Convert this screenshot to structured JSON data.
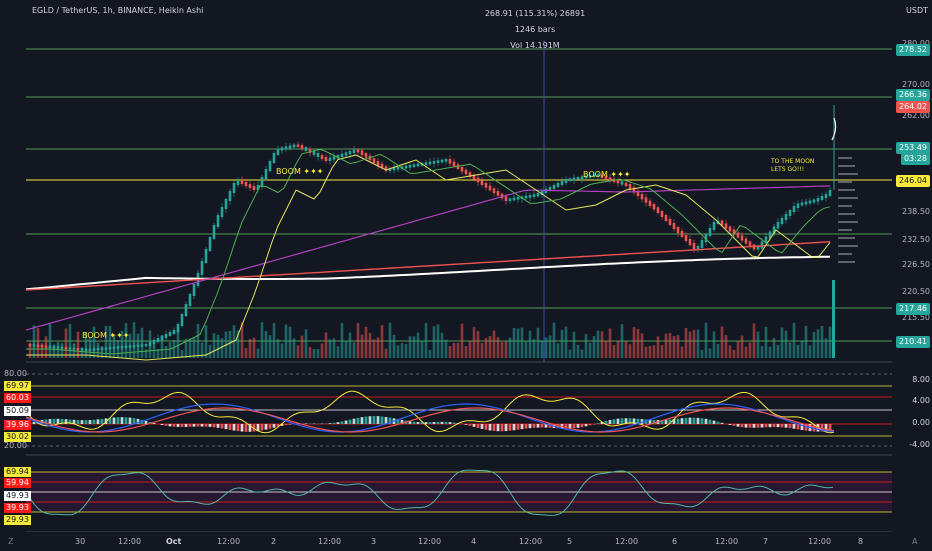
{
  "header": {
    "symbol_line": "EGLD / TetherUS, 1h, BINANCE, Heikin Ashi",
    "measure_line1": "268.91 (115.31%) 26891",
    "measure_line2": "1246 bars",
    "measure_line3": "Vol 14.191M"
  },
  "price_axis": {
    "currency": "USDT",
    "ticks": [
      "280.00",
      "270.00",
      "262.00",
      "238.50",
      "232.50",
      "226.50",
      "220.50",
      "215.50"
    ],
    "labels": [
      {
        "text": "278.52",
        "color": "#26a69a"
      },
      {
        "text": "266.36",
        "color": "#26a69a"
      },
      {
        "text": "264.02",
        "color": "#ef5350"
      },
      {
        "text": "253.49",
        "color": "#26a69a"
      },
      {
        "text": "03:28",
        "color": "#26a69a"
      },
      {
        "text": "246.04",
        "color": "#f5e93b"
      },
      {
        "text": "217.46",
        "color": "#26a69a"
      },
      {
        "text": "210.41",
        "color": "#26a69a"
      }
    ]
  },
  "osc1": {
    "left_labels": [
      {
        "text": "80.00",
        "bg": ""
      },
      {
        "text": "69.97",
        "bg": "#f5e93b"
      },
      {
        "text": "60.03",
        "bg": "#ff1a1a"
      },
      {
        "text": "50.09",
        "bg": "#ffffff"
      },
      {
        "text": "39.96",
        "bg": "#ff1a1a"
      },
      {
        "text": "30.02",
        "bg": "#f5e93b"
      },
      {
        "text": "20.00",
        "bg": ""
      }
    ],
    "right_ticks": [
      "8.00",
      "4.00",
      "0.00",
      "-4.00"
    ]
  },
  "osc2": {
    "left_labels": [
      {
        "text": "69.94",
        "bg": "#f5e93b"
      },
      {
        "text": "59.94",
        "bg": "#ff1a1a"
      },
      {
        "text": "49.93",
        "bg": "#ffffff"
      },
      {
        "text": "39.93",
        "bg": "#ff1a1a"
      },
      {
        "text": "29.93",
        "bg": "#f5e93b"
      }
    ]
  },
  "time_axis": {
    "ticks": [
      {
        "text": "30",
        "bold": false
      },
      {
        "text": "12:00",
        "bold": false
      },
      {
        "text": "Oct",
        "bold": true
      },
      {
        "text": "12:00",
        "bold": false
      },
      {
        "text": "2",
        "bold": false
      },
      {
        "text": "12:00",
        "bold": false
      },
      {
        "text": "3",
        "bold": false
      },
      {
        "text": "12:00",
        "bold": false
      },
      {
        "text": "4",
        "bold": false
      },
      {
        "text": "12:00",
        "bold": false
      },
      {
        "text": "5",
        "bold": false
      },
      {
        "text": "12:00",
        "bold": false
      },
      {
        "text": "6",
        "bold": false
      },
      {
        "text": "12:00",
        "bold": false
      },
      {
        "text": "7",
        "bold": false
      },
      {
        "text": "12:00",
        "bold": false
      },
      {
        "text": "8",
        "bold": false
      }
    ],
    "corner_left": "Z",
    "corner_right": "A"
  },
  "annotations": {
    "moon_text": "TO THE MOON\nLETS GO!!!",
    "boom1": "BOOM",
    "boom2": "BOOM",
    "boom3": "BOOM"
  },
  "colors": {
    "bull": "#26a69a",
    "bear": "#ef5350",
    "bg": "#131722"
  }
}
